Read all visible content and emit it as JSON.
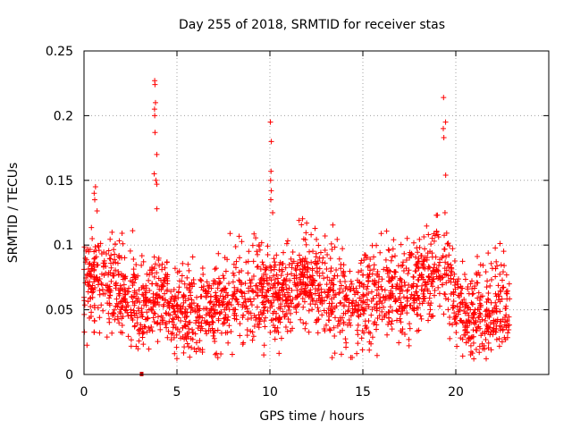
{
  "chart_data": {
    "type": "scatter",
    "title": "Day 255 of 2018, SRMTID for receiver stas",
    "xlabel": "GPS time / hours",
    "ylabel": "SRMTID / TECUs",
    "xlim": [
      0,
      25
    ],
    "ylim": [
      0,
      0.25
    ],
    "xticks": [
      0,
      5,
      10,
      15,
      20
    ],
    "xtick_labels": [
      "0",
      "5",
      "10",
      "15",
      "20"
    ],
    "yticks": [
      0,
      0.05,
      0.1,
      0.15,
      0.2,
      0.25
    ],
    "ytick_labels": [
      "0",
      "0.05",
      "0.1",
      "0.15",
      "0.2",
      "0.25"
    ],
    "grid": true,
    "marker": "+",
    "color": "#ff0000",
    "outlier_color": "#cc0000",
    "outliers": [
      {
        "x": 3.1,
        "y": 0.0
      }
    ],
    "series": [
      {
        "name": "stas",
        "x_range": [
          0,
          22.9
        ],
        "n_points": 2200
      }
    ],
    "spikes": [
      {
        "x": 0.6,
        "values": [
          0.14,
          0.145,
          0.135
        ]
      },
      {
        "x": 3.85,
        "values": [
          0.227,
          0.224,
          0.21,
          0.205,
          0.2,
          0.187,
          0.17,
          0.155,
          0.15,
          0.147,
          0.128
        ]
      },
      {
        "x": 10.1,
        "values": [
          0.195,
          0.18,
          0.157,
          0.15,
          0.142,
          0.135,
          0.125
        ]
      },
      {
        "x": 19.4,
        "values": [
          0.214,
          0.195,
          0.19,
          0.183,
          0.154,
          0.125
        ]
      }
    ],
    "envelope": [
      {
        "x": 0,
        "y": 0.068
      },
      {
        "x": 1,
        "y": 0.075
      },
      {
        "x": 2,
        "y": 0.065
      },
      {
        "x": 3,
        "y": 0.055
      },
      {
        "x": 4,
        "y": 0.06
      },
      {
        "x": 5,
        "y": 0.05
      },
      {
        "x": 6,
        "y": 0.047
      },
      {
        "x": 7,
        "y": 0.05
      },
      {
        "x": 8,
        "y": 0.052
      },
      {
        "x": 9,
        "y": 0.065
      },
      {
        "x": 10,
        "y": 0.06
      },
      {
        "x": 11,
        "y": 0.062
      },
      {
        "x": 11.8,
        "y": 0.08
      },
      {
        "x": 12.5,
        "y": 0.068
      },
      {
        "x": 13.5,
        "y": 0.06
      },
      {
        "x": 14.5,
        "y": 0.057
      },
      {
        "x": 15,
        "y": 0.058
      },
      {
        "x": 16,
        "y": 0.065
      },
      {
        "x": 17,
        "y": 0.063
      },
      {
        "x": 18,
        "y": 0.07
      },
      {
        "x": 19,
        "y": 0.08
      },
      {
        "x": 19.6,
        "y": 0.075
      },
      {
        "x": 20,
        "y": 0.055
      },
      {
        "x": 21,
        "y": 0.045
      },
      {
        "x": 22,
        "y": 0.05
      },
      {
        "x": 22.9,
        "y": 0.055
      }
    ]
  }
}
